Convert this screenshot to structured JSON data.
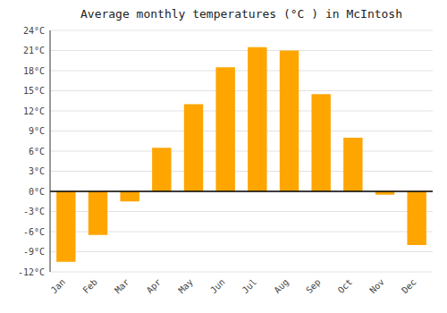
{
  "chart_data": {
    "type": "bar",
    "title": "Average monthly temperatures (°C ) in McIntosh",
    "categories": [
      "Jan",
      "Feb",
      "Mar",
      "Apr",
      "May",
      "Jun",
      "Jul",
      "Aug",
      "Sep",
      "Oct",
      "Nov",
      "Dec"
    ],
    "values": [
      -10.5,
      -6.5,
      -1.5,
      6.5,
      13.0,
      18.5,
      21.5,
      21.0,
      14.5,
      8.0,
      -0.5,
      -8.0
    ],
    "color": "#FFA500",
    "ylim": [
      -12,
      24
    ],
    "yticks": [
      {
        "value": -12,
        "label": "-12°C"
      },
      {
        "value": -9,
        "label": "-9°C"
      },
      {
        "value": -6,
        "label": "-6°C"
      },
      {
        "value": -3,
        "label": "-3°C"
      },
      {
        "value": 0,
        "label": "0°C"
      },
      {
        "value": 3,
        "label": "3°C"
      },
      {
        "value": 6,
        "label": "6°C"
      },
      {
        "value": 9,
        "label": "9°C"
      },
      {
        "value": 12,
        "label": "12°C"
      },
      {
        "value": 15,
        "label": "15°C"
      },
      {
        "value": 18,
        "label": "18°C"
      },
      {
        "value": 21,
        "label": "21°C"
      },
      {
        "value": 24,
        "label": "24°C"
      }
    ],
    "grid": true
  }
}
